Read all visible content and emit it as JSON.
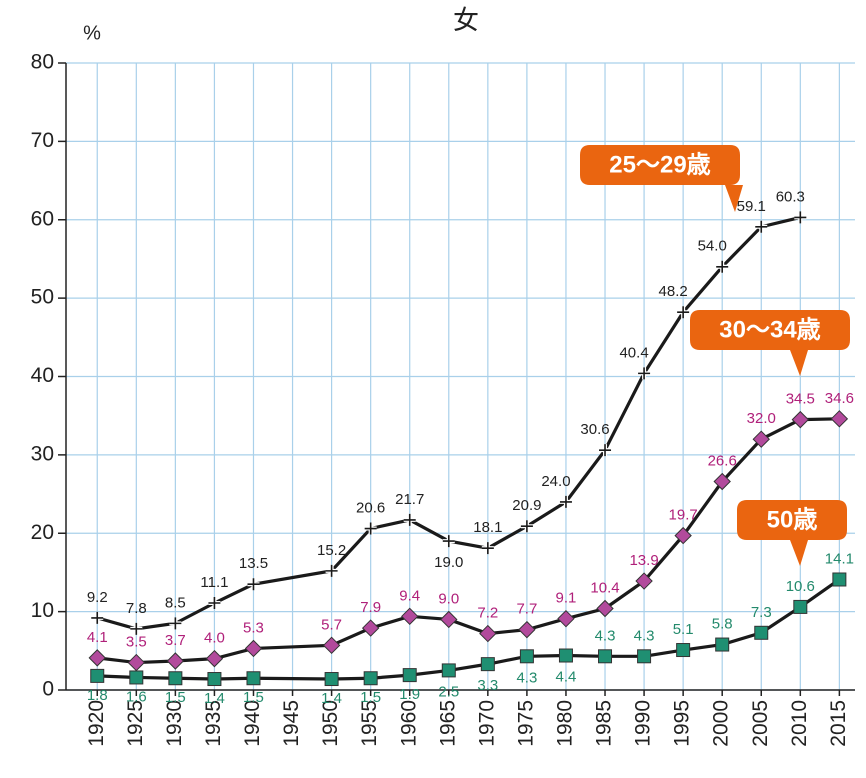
{
  "chart_data": {
    "type": "line",
    "title": "女",
    "y_unit": "%",
    "xlim": [
      1916,
      2017
    ],
    "xticks": [
      1920,
      1925,
      1930,
      1935,
      1940,
      1945,
      1950,
      1955,
      1960,
      1965,
      1970,
      1975,
      1980,
      1985,
      1990,
      1995,
      2000,
      2005,
      2010,
      2015
    ],
    "ylim": [
      0,
      80
    ],
    "yticks": [
      0,
      10,
      20,
      30,
      40,
      50,
      60,
      70,
      80
    ],
    "grid": true,
    "series": [
      {
        "name": "25〜29歳",
        "color": "#1a1a1a",
        "marker": "plus",
        "x": [
          1920,
          1925,
          1930,
          1935,
          1940,
          1950,
          1955,
          1960,
          1965,
          1970,
          1975,
          1980,
          1985,
          1990,
          1995,
          2000,
          2005,
          2010
        ],
        "values": [
          9.2,
          7.8,
          8.5,
          11.1,
          13.5,
          15.2,
          20.6,
          21.7,
          19.0,
          18.1,
          20.9,
          24.0,
          30.6,
          40.4,
          48.2,
          54.0,
          59.1,
          60.3
        ],
        "value_labels": [
          "9.2",
          "7.8",
          "8.5",
          "11.1",
          "13.5",
          "15.2",
          "20.6",
          "21.7",
          "19.0",
          "18.1",
          "20.9",
          "24.0",
          "30.6",
          "40.4",
          "48.2",
          "54.0",
          "59.1",
          "60.3"
        ]
      },
      {
        "name": "30〜34歳",
        "color": "#b24a9c",
        "marker": "diamond",
        "x": [
          1920,
          1925,
          1930,
          1935,
          1940,
          1950,
          1955,
          1960,
          1965,
          1970,
          1975,
          1980,
          1985,
          1990,
          1995,
          2000,
          2005,
          2010,
          2015
        ],
        "values": [
          4.1,
          3.5,
          3.7,
          4.0,
          5.3,
          5.7,
          7.9,
          9.4,
          9.0,
          7.2,
          7.7,
          9.1,
          10.4,
          13.9,
          19.7,
          26.6,
          32.0,
          34.5,
          34.6
        ],
        "value_labels": [
          "4.1",
          "3.5",
          "3.7",
          "4.0",
          "5.3",
          "5.7",
          "7.9",
          "9.4",
          "9.0",
          "7.2",
          "7.7",
          "9.1",
          "10.4",
          "13.9",
          "19.7",
          "26.6",
          "32.0",
          "34.5",
          "34.6"
        ]
      },
      {
        "name": "50歳",
        "color": "#1f8f72",
        "marker": "square",
        "x": [
          1920,
          1925,
          1930,
          1935,
          1940,
          1950,
          1955,
          1960,
          1965,
          1970,
          1975,
          1980,
          1985,
          1990,
          1995,
          2000,
          2005,
          2010,
          2015
        ],
        "values": [
          1.8,
          1.6,
          1.5,
          1.4,
          1.5,
          1.4,
          1.5,
          1.9,
          2.5,
          3.3,
          4.3,
          4.4,
          4.3,
          4.3,
          5.1,
          5.8,
          7.3,
          10.6,
          14.1
        ],
        "value_labels": [
          "1.8",
          "1.6",
          "1.5",
          "1.4",
          "1.5",
          "1.4",
          "1.5",
          "1.9",
          "2.5",
          "3.3",
          "4.3",
          "4.4",
          "4.3",
          "4.3",
          "5.1",
          "5.8",
          "7.3",
          "10.6",
          "14.1"
        ]
      }
    ]
  }
}
